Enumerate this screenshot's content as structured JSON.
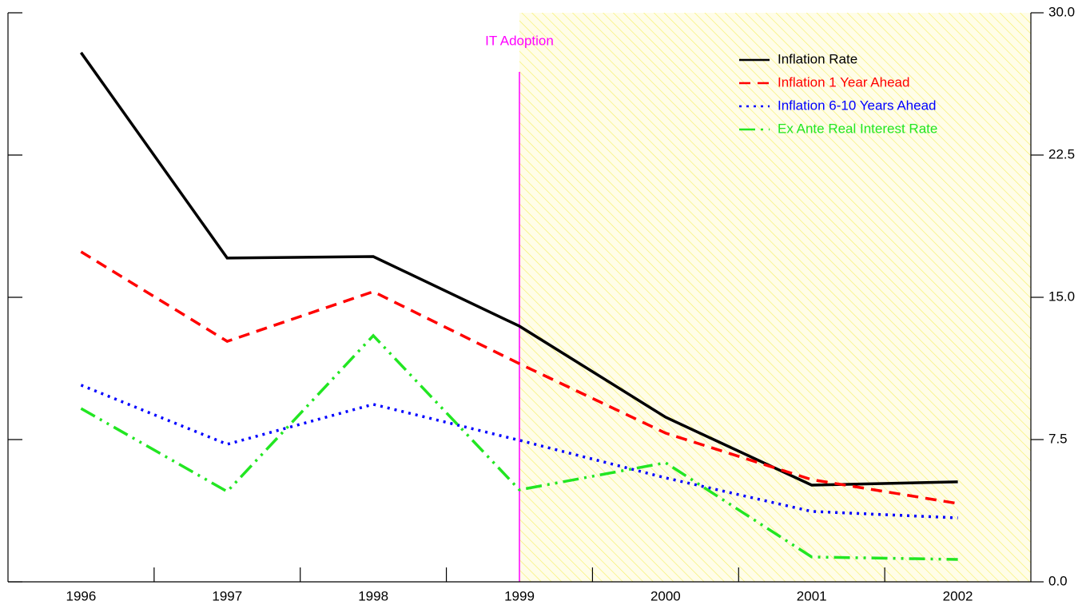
{
  "chart_data": {
    "type": "line",
    "categories": [
      "1996",
      "1997",
      "1998",
      "1999",
      "2000",
      "2001",
      "2002"
    ],
    "series": [
      {
        "name": "Inflation Rate",
        "color": "#000000",
        "dash": "solid",
        "values": [
          27.9,
          17.07,
          17.15,
          13.48,
          8.68,
          5.1,
          5.27
        ]
      },
      {
        "name": "Inflation 1 Year Ahead",
        "color": "#ff0000",
        "dash": "dashed",
        "values": [
          17.4,
          12.68,
          15.3,
          11.5,
          7.84,
          5.39,
          4.13
        ]
      },
      {
        "name": "Inflation 6-10 Years Ahead",
        "color": "#0000ff",
        "dash": "dotted",
        "values": [
          10.37,
          7.25,
          9.36,
          7.46,
          5.48,
          3.71,
          3.37
        ]
      },
      {
        "name": "Ex Ante Real Interest Rate",
        "color": "#22e622",
        "dash": "dashdotdot",
        "values": [
          9.14,
          4.76,
          12.98,
          4.85,
          6.28,
          1.31,
          1.18
        ]
      }
    ],
    "ylim": [
      0,
      30
    ],
    "yticks": [
      {
        "value": 0,
        "label": "0.0"
      },
      7.5,
      {
        "value": 15,
        "label": "15.0"
      },
      {
        "value": 22.5,
        "label": "22.5"
      },
      {
        "value": 30,
        "label": "30.0"
      }
    ],
    "annotation": {
      "label": "IT Adoption",
      "category": "1999",
      "color": "#ff00ff",
      "shade_color": "#ffff66"
    },
    "legend": "top-right"
  }
}
